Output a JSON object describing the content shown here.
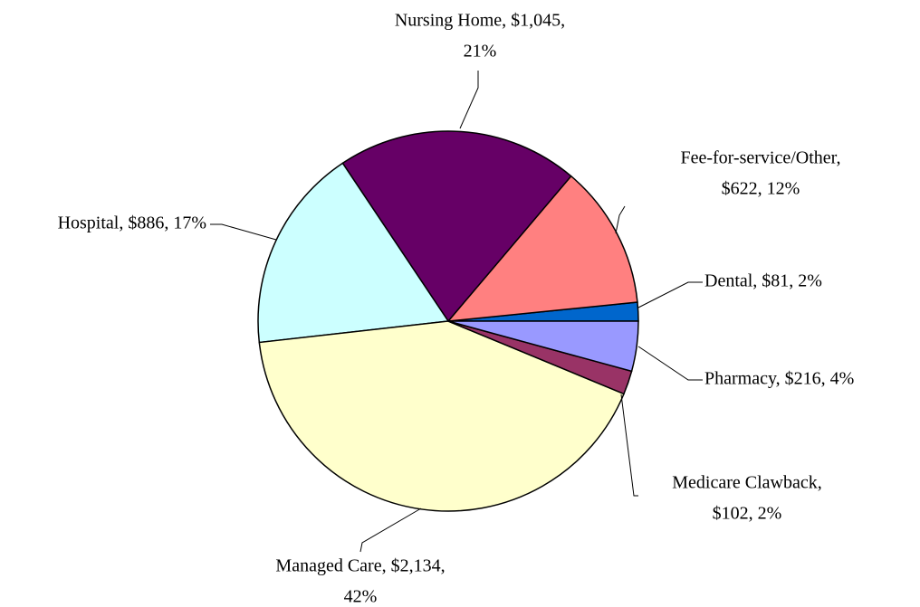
{
  "chart_data": {
    "type": "pie",
    "values": [
      81,
      622,
      1045,
      886,
      2134,
      102,
      216
    ],
    "labels": [
      [
        "Dental, $81, 2%"
      ],
      [
        "Fee-for-service/Other,",
        "$622, 12%"
      ],
      [
        "Nursing Home, $1,045,",
        "21%"
      ],
      [
        "Hospital, $886, 17%"
      ],
      [
        "Managed Care, $2,134,",
        "42%"
      ],
      [
        "Medicare Clawback,",
        "$102, 2%"
      ],
      [
        "Pharmacy, $216, 4%"
      ]
    ],
    "colors": [
      "#0066cc",
      "#ff8080",
      "#660066",
      "#ccffff",
      "#ffffcc",
      "#993366",
      "#9999ff"
    ]
  }
}
